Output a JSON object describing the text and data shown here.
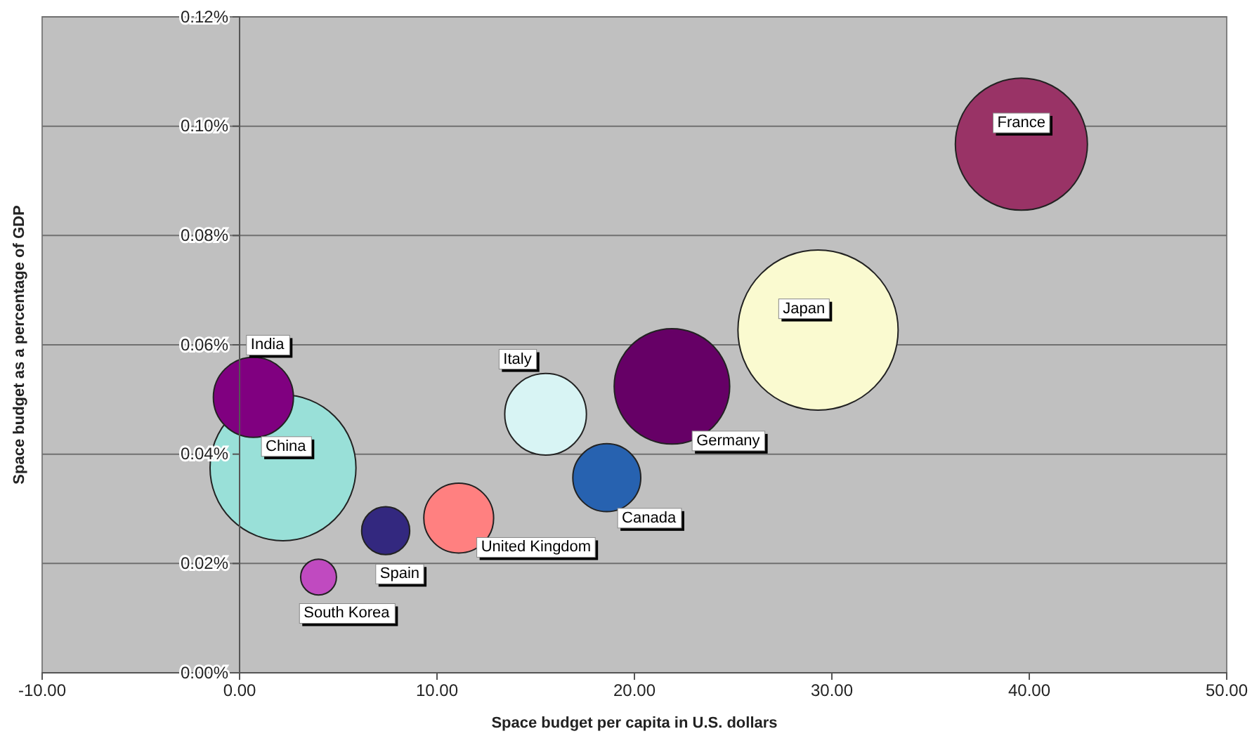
{
  "chart_data": {
    "type": "bubble",
    "xlabel": "Space budget per capita in U.S. dollars",
    "ylabel": "Space budget as a percentage of GDP",
    "xlim": [
      -10,
      50
    ],
    "xticks": [
      {
        "value": -10,
        "label": "-10.00"
      },
      {
        "value": 0,
        "label": "0.00"
      },
      {
        "value": 10,
        "label": "10.00"
      },
      {
        "value": 20,
        "label": "20.00"
      },
      {
        "value": 30,
        "label": "30.00"
      },
      {
        "value": 40,
        "label": "40.00"
      },
      {
        "value": 50,
        "label": "50.00"
      }
    ],
    "ylim": [
      0,
      0.12
    ],
    "yticks": [
      {
        "value": 0,
        "label": "0.00%"
      },
      {
        "value": 0.02,
        "label": "0.02%"
      },
      {
        "value": 0.04,
        "label": "0.04%"
      },
      {
        "value": 0.06,
        "label": "0.06%"
      },
      {
        "value": 0.08,
        "label": "0.08%"
      },
      {
        "value": 0.1,
        "label": "0.10%"
      },
      {
        "value": 0.12,
        "label": "0.12%"
      }
    ],
    "grid": "y",
    "legend": false,
    "series": [
      {
        "name": "China",
        "color": "#99e0d8",
        "x": [
          2.2
        ],
        "values": [
          0.0375
        ],
        "sizes": [
          0.83
        ]
      },
      {
        "name": "India",
        "color": "#800080",
        "x": [
          0.7
        ],
        "values": [
          0.0504
        ],
        "sizes": [
          0.25
        ]
      },
      {
        "name": "South Korea",
        "color": "#c04ac0",
        "x": [
          4.0
        ],
        "values": [
          0.0175
        ],
        "sizes": [
          0.05
        ]
      },
      {
        "name": "Spain",
        "color": "#33287f",
        "x": [
          7.4
        ],
        "values": [
          0.026
        ],
        "sizes": [
          0.09
        ]
      },
      {
        "name": "United Kingdom",
        "color": "#ff8080",
        "x": [
          11.1
        ],
        "values": [
          0.0283
        ],
        "sizes": [
          0.19
        ]
      },
      {
        "name": "Italy",
        "color": "#d8f4f4",
        "x": [
          15.5
        ],
        "values": [
          0.0473
        ],
        "sizes": [
          0.26
        ]
      },
      {
        "name": "Canada",
        "color": "#2762b0",
        "x": [
          18.6
        ],
        "values": [
          0.0357
        ],
        "sizes": [
          0.18
        ]
      },
      {
        "name": "Germany",
        "color": "#660066",
        "x": [
          21.9
        ],
        "values": [
          0.0524
        ],
        "sizes": [
          0.52
        ]
      },
      {
        "name": "Japan",
        "color": "#fafad0",
        "x": [
          29.3
        ],
        "values": [
          0.0627
        ],
        "sizes": [
          1
        ]
      },
      {
        "name": "France",
        "color": "#993366",
        "x": [
          39.6
        ],
        "values": [
          0.0967
        ],
        "sizes": [
          0.68
        ]
      }
    ]
  }
}
